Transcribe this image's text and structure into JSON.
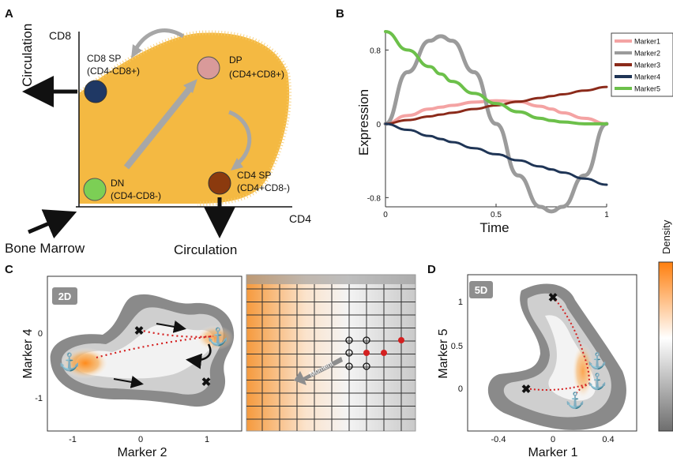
{
  "panels": {
    "a": {
      "letter": "A",
      "y_axis_label": "CD8",
      "x_axis_label": "CD4",
      "left_label": "Circulation",
      "bottom_left_label": "Bone Marrow",
      "bottom_label": "Circulation",
      "populations": [
        {
          "name": "CD8 SP",
          "phenotype": "(CD4-CD8+)",
          "color": "#1f3864"
        },
        {
          "name": "DP",
          "phenotype": "(CD4+CD8+)",
          "color": "#d99a9a"
        },
        {
          "name": "DN",
          "phenotype": "(CD4-CD8-)",
          "color": "#7ccf55"
        },
        {
          "name": "CD4 SP",
          "phenotype": "(CD4+CD8-)",
          "color": "#8b3a0e"
        }
      ],
      "cloud_color": "#f4b942"
    },
    "b": {
      "letter": "B",
      "y_axis_label": "Expression",
      "x_axis_label": "Time",
      "legend": [
        "Marker1",
        "Marker2",
        "Marker3",
        "Marker4",
        "Marker5"
      ]
    },
    "c": {
      "letter": "C",
      "badge": "2D",
      "x_axis_label": "Marker 2",
      "y_axis_label": "Marker 4",
      "x_ticks": [
        "-1",
        "0",
        "1"
      ],
      "y_ticks": [
        "0",
        "-1"
      ],
      "inset_arrow_label": "Moment"
    },
    "d": {
      "letter": "D",
      "badge": "5D",
      "x_axis_label": "Marker 1",
      "y_axis_label": "Marker 5",
      "x_ticks": [
        "-0.4",
        "0",
        "0.4"
      ],
      "y_ticks": [
        "1",
        "0.5",
        "0"
      ],
      "colorbar_label": "Density"
    }
  },
  "chart_data": {
    "type": "line",
    "xlabel": "Time",
    "ylabel": "Expression",
    "xlim": [
      0,
      1
    ],
    "ylim": [
      -0.9,
      1.0
    ],
    "x_ticks": [
      0,
      0.5,
      1
    ],
    "y_ticks": [
      0.8,
      0,
      -0.8
    ],
    "x": [
      0,
      0.1,
      0.2,
      0.25,
      0.3,
      0.4,
      0.5,
      0.6,
      0.7,
      0.75,
      0.8,
      0.9,
      1.0
    ],
    "series": [
      {
        "name": "Marker1",
        "color": "#f4a3a3",
        "width": 4,
        "values": [
          0,
          0.09,
          0.16,
          0.18,
          0.2,
          0.235,
          0.25,
          0.24,
          0.19,
          0.16,
          0.12,
          0.06,
          0
        ]
      },
      {
        "name": "Marker2",
        "color": "#9b9b9b",
        "width": 5,
        "values": [
          0,
          0.56,
          0.9,
          0.95,
          0.9,
          0.56,
          0,
          -0.56,
          -0.9,
          -0.95,
          -0.9,
          -0.56,
          0
        ]
      },
      {
        "name": "Marker3",
        "color": "#8b2a1a",
        "width": 3,
        "values": [
          0,
          0.04,
          0.08,
          0.1,
          0.12,
          0.16,
          0.2,
          0.24,
          0.28,
          0.3,
          0.32,
          0.36,
          0.4
        ]
      },
      {
        "name": "Marker4",
        "color": "#1f3556",
        "width": 3,
        "values": [
          0,
          -0.066,
          -0.132,
          -0.165,
          -0.198,
          -0.264,
          -0.33,
          -0.396,
          -0.462,
          -0.495,
          -0.528,
          -0.594,
          -0.66
        ]
      },
      {
        "name": "Marker5",
        "color": "#6cc04a",
        "width": 4,
        "values": [
          1.0,
          0.8,
          0.62,
          0.54,
          0.46,
          0.33,
          0.22,
          0.13,
          0.06,
          0.035,
          0.02,
          0.0,
          0.0
        ]
      }
    ]
  }
}
